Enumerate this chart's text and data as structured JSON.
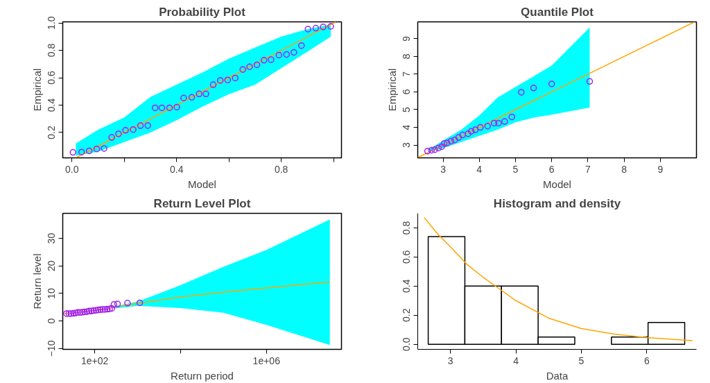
{
  "chart_data": [
    {
      "type": "scatter",
      "title": "Probability Plot",
      "xlabel": "Model",
      "ylabel": "Empirical",
      "grid": false,
      "xlim": [
        -0.035,
        1.03
      ],
      "ylim": [
        0.015,
        1.008
      ],
      "xticks": [
        {
          "value": 0,
          "label": "0.0"
        },
        {
          "value": 0.2,
          "label": null
        },
        {
          "value": 0.4,
          "label": "0.4"
        },
        {
          "value": 0.6,
          "label": null
        },
        {
          "value": 0.8,
          "label": "0.8"
        },
        {
          "value": 1,
          "label": null
        }
      ],
      "yticks": [
        0.2,
        0.4,
        0.6,
        0.8,
        {
          "value": 1,
          "label": "1.0"
        }
      ],
      "series": [
        {
          "type": "line",
          "color": "#ffa500",
          "x": [
            0.015,
            0.1,
            0.2,
            0.3,
            0.4,
            0.5,
            0.6,
            0.7,
            0.8,
            0.9,
            0.989,
            1.008
          ],
          "values": [
            0.015,
            0.1,
            0.2,
            0.3,
            0.4,
            0.5,
            0.6,
            0.7,
            0.8,
            0.9,
            0.989,
            1.008
          ],
          "upper": [
            0.12,
            0.22,
            0.31,
            0.46,
            0.55,
            0.64,
            0.74,
            0.82,
            0.9,
            0.955,
            0.989,
            null
          ],
          "lower": [
            0.03,
            0.06,
            0.13,
            0.2,
            0.29,
            0.39,
            0.48,
            0.55,
            0.67,
            0.79,
            0.9,
            null
          ]
        },
        {
          "type": "scatter",
          "marker": "circle",
          "color": "#a020f0",
          "x": [
            0.004,
            0.037,
            0.066,
            0.095,
            0.123,
            0.152,
            0.178,
            0.205,
            0.234,
            0.262,
            0.29,
            0.318,
            0.344,
            0.373,
            0.401,
            0.427,
            0.458,
            0.486,
            0.512,
            0.54,
            0.567,
            0.595,
            0.624,
            0.653,
            0.679,
            0.707,
            0.734,
            0.761,
            0.791,
            0.82,
            0.848,
            0.877,
            0.902,
            0.932,
            0.96,
            0.989
          ],
          "values": [
            0.055,
            0.057,
            0.066,
            0.08,
            0.084,
            0.164,
            0.19,
            0.216,
            0.222,
            0.25,
            0.251,
            0.38,
            0.38,
            0.38,
            0.385,
            0.452,
            0.457,
            0.482,
            0.482,
            0.549,
            0.58,
            0.584,
            0.598,
            0.66,
            0.68,
            0.694,
            0.728,
            0.732,
            0.765,
            0.77,
            0.785,
            0.835,
            0.955,
            0.962,
            0.971,
            0.975
          ]
        }
      ]
    },
    {
      "type": "scatter",
      "title": "Quantile Plot",
      "xlabel": "Model",
      "ylabel": "Empirical",
      "grid": false,
      "xlim": [
        2.3,
        10.0
      ],
      "ylim": [
        2.28,
        9.95
      ],
      "xticks": [
        3,
        4,
        5,
        6,
        7,
        8,
        9
      ],
      "yticks": [
        3,
        4,
        5,
        6,
        7,
        8,
        9
      ],
      "series": [
        {
          "type": "line",
          "color": "#ffa500",
          "x": [
            2.3,
            2.6,
            3,
            3.5,
            4,
            4.5,
            5,
            5.5,
            6,
            7.05,
            9.95
          ],
          "values": [
            2.3,
            2.6,
            3,
            3.5,
            4,
            4.5,
            5,
            5.5,
            6,
            7.05,
            9.95
          ],
          "upper": [
            null,
            2.75,
            3.26,
            3.86,
            4.67,
            5.67,
            6.28,
            6.88,
            7.48,
            9.64,
            null
          ],
          "lower": [
            null,
            2.6,
            2.83,
            3.17,
            3.52,
            3.86,
            4.29,
            4.55,
            4.72,
            5.12,
            null
          ]
        },
        {
          "type": "scatter",
          "marker": "circle",
          "color": "#a020f0",
          "x": [
            2.57,
            2.68,
            2.77,
            2.87,
            2.96,
            3.03,
            3.11,
            3.22,
            3.32,
            3.43,
            3.54,
            3.69,
            3.78,
            3.89,
            4.03,
            4.23,
            4.41,
            4.53,
            4.7,
            4.9,
            5.16,
            5.5,
            6.0,
            7.05
          ],
          "values": [
            2.66,
            2.71,
            2.74,
            2.83,
            2.91,
            3.09,
            3.12,
            3.22,
            3.29,
            3.43,
            3.57,
            3.64,
            3.78,
            3.86,
            4.0,
            4.07,
            4.24,
            4.24,
            4.33,
            4.59,
            5.98,
            6.22,
            6.45,
            6.59
          ]
        }
      ]
    },
    {
      "type": "scatter",
      "title": "Return Level Plot",
      "xlabel": "Return period",
      "ylabel": "Return level",
      "grid": false,
      "log": "x",
      "xlim": [
        18,
        56000000
      ],
      "ylim": [
        -10.3,
        39.1
      ],
      "xticks": [
        {
          "value": 100,
          "label": "1e+02"
        },
        {
          "value": 10000,
          "label": null
        },
        {
          "value": 1000000,
          "label": "1e+06"
        }
      ],
      "yticks": [
        -10,
        0,
        10,
        20,
        30
      ],
      "series": [
        {
          "type": "line",
          "color": "#ffa500",
          "x": [
            20,
            100,
            300,
            1000,
            10000,
            100000,
            1000000,
            30000000
          ],
          "values": [
            2.6,
            3.9,
            5.1,
            6.4,
            8.7,
            10.5,
            12.0,
            14.2
          ],
          "upper": [
            null,
            null,
            5.4,
            7.0,
            13,
            19.7,
            25.8,
            36.9
          ],
          "lower": [
            null,
            null,
            4.6,
            5.5,
            4.7,
            3,
            -1.4,
            -8.7
          ]
        },
        {
          "type": "scatter",
          "marker": "circle",
          "color": "#a020f0",
          "x": [
            22,
            25,
            28,
            32,
            36,
            40,
            46,
            52,
            58,
            66,
            74,
            84,
            95,
            107,
            120,
            136,
            154,
            173,
            196,
            221,
            250,
            280,
            340,
            580,
            1120
          ],
          "values": [
            2.7,
            2.7,
            2.7,
            2.8,
            2.9,
            3.1,
            3.1,
            3.2,
            3.3,
            3.4,
            3.6,
            3.6,
            3.8,
            3.9,
            4.0,
            4.1,
            4.2,
            4.2,
            4.3,
            4.4,
            4.6,
            6.0,
            6.2,
            6.5,
            6.6
          ]
        }
      ]
    },
    {
      "type": "histogram",
      "title": "Histogram and density",
      "xlabel": "Data",
      "grid": false,
      "color": "#ffffff",
      "xlim": [
        2.5,
        6.76
      ],
      "ylim": [
        -0.035,
        0.9
      ],
      "xticks": [
        3,
        4,
        5,
        6
      ],
      "yticks": [
        {
          "value": 0,
          "label": "0.0"
        },
        0.2,
        0.4,
        0.6,
        0.8
      ],
      "bins": [
        2.66,
        3.22,
        3.78,
        4.34,
        4.9,
        5.46,
        6.02,
        6.58
      ],
      "values": [
        0.74,
        0.4,
        0.4,
        0.05,
        0,
        0.05,
        0.15
      ],
      "series": [
        {
          "type": "line",
          "color": "#ffa500",
          "x": [
            2.6,
            2.8,
            3.0,
            3.25,
            3.5,
            3.75,
            4.0,
            4.5,
            5.0,
            5.5,
            6.0,
            6.7
          ],
          "values": [
            0.87,
            0.76,
            0.67,
            0.55,
            0.46,
            0.38,
            0.3,
            0.18,
            0.108,
            0.07,
            0.046,
            0.025
          ]
        }
      ]
    }
  ]
}
